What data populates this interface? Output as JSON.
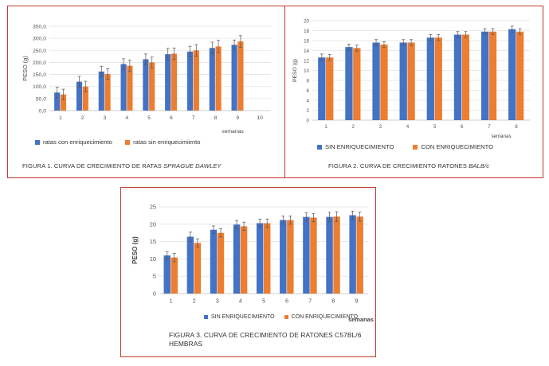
{
  "colors": {
    "blue": "#4472c4",
    "orange": "#ed7d31",
    "frame": "#c0392b"
  },
  "figures": [
    {
      "caption_main": "FIGURA 1. CURVA DE CRECIMIENTO DE RATAS ",
      "caption_italic": "SPRAGUE DAWLEY",
      "caption_line2": ""
    },
    {
      "caption_main": "FIGURA 2. CURVA DE CRECIMIENTO RATONES ",
      "caption_italic": "BALB/c",
      "caption_line2": ""
    },
    {
      "caption_main": "FIGURA 3. CURVA DE CRECIMIENTO DE RATONES C57BL/6",
      "caption_italic": "",
      "caption_line2": "HEMBRAS"
    }
  ],
  "chart_data": [
    {
      "type": "bar",
      "ylabel": "PESO (g)",
      "xlabel": "semanas",
      "ylim": [
        0,
        350
      ],
      "yticks": [
        "0,0",
        "50,0",
        "100,0",
        "150,0",
        "200,0",
        "250,0",
        "300,0",
        "350,0"
      ],
      "categories": [
        "1",
        "2",
        "3",
        "4",
        "5",
        "6",
        "7",
        "8",
        "9",
        "10"
      ],
      "legend_position": "bottom",
      "grid": true,
      "series": [
        {
          "name": "ratas con enriquecimiento",
          "color": "#4472c4",
          "values": [
            75,
            120,
            162,
            193,
            213,
            234,
            245,
            260,
            273,
            null
          ],
          "errors": [
            22,
            22,
            22,
            22,
            22,
            24,
            22,
            24,
            20,
            null
          ]
        },
        {
          "name": "ratas sin enriquecimiento",
          "color": "#ed7d31",
          "values": [
            67,
            100,
            152,
            186,
            200,
            236,
            250,
            266,
            287,
            null
          ],
          "errors": [
            22,
            22,
            22,
            24,
            22,
            24,
            24,
            26,
            24,
            null
          ]
        }
      ]
    },
    {
      "type": "bar",
      "ylabel": "PESO (g)",
      "xlabel": "semanas",
      "ylim": [
        0,
        20
      ],
      "yticks": [
        "0",
        "2",
        "4",
        "6",
        "8",
        "10",
        "12",
        "14",
        "16",
        "18",
        "20"
      ],
      "categories": [
        "1",
        "2",
        "3",
        "4",
        "5",
        "6",
        "7",
        "8"
      ],
      "legend_position": "bottom",
      "grid": true,
      "series": [
        {
          "name": "SIN ENRIQUECIMIENTO",
          "color": "#4472c4",
          "values": [
            12.6,
            14.7,
            15.6,
            15.6,
            16.6,
            17.2,
            17.8,
            18.3
          ],
          "errors": [
            0.7,
            0.6,
            0.6,
            0.6,
            0.6,
            0.6,
            0.6,
            0.6
          ]
        },
        {
          "name": "CON ENRIQUECIMIENTO",
          "color": "#ed7d31",
          "values": [
            12.6,
            14.5,
            15.2,
            15.6,
            16.6,
            17.2,
            17.8,
            17.8
          ],
          "errors": [
            0.6,
            0.6,
            0.6,
            0.6,
            0.6,
            0.6,
            0.6,
            0.6
          ]
        }
      ]
    },
    {
      "type": "bar",
      "ylabel": "PESO (g)",
      "xlabel": "semanas",
      "ylim": [
        0,
        25
      ],
      "yticks": [
        "0",
        "5",
        "10",
        "15",
        "20",
        "25"
      ],
      "categories": [
        "1",
        "2",
        "3",
        "4",
        "5",
        "6",
        "7",
        "8",
        "9"
      ],
      "legend_position": "bottom",
      "grid": true,
      "series": [
        {
          "name": "SIN ENRIQUECIMIENTO",
          "color": "#4472c4",
          "values": [
            11,
            16.4,
            18.4,
            19.9,
            20.3,
            21.2,
            22.1,
            22.1,
            22.6
          ],
          "errors": [
            1.1,
            1.3,
            1.1,
            1.2,
            1.2,
            1.2,
            1.2,
            1.3,
            1.2
          ]
        },
        {
          "name": "CON ENRIQUECIMIENTO",
          "color": "#ed7d31",
          "values": [
            10.4,
            14.6,
            17.5,
            19.4,
            20.3,
            21.2,
            21.9,
            22.2,
            22.2
          ],
          "errors": [
            1.2,
            1.2,
            1.2,
            1.2,
            1.2,
            1.2,
            1.2,
            1.4,
            1.3
          ]
        }
      ]
    }
  ]
}
